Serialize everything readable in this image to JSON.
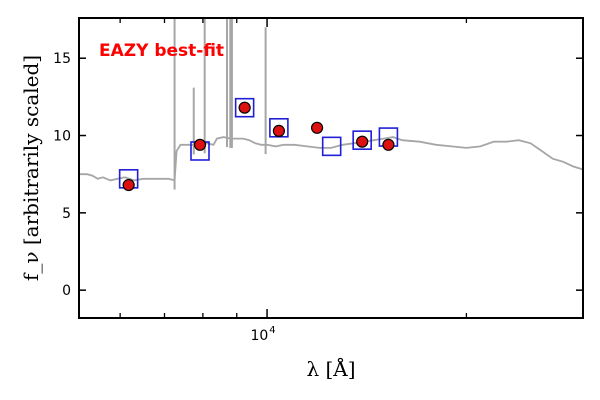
{
  "chart_data": {
    "type": "scatter",
    "xscale": "log",
    "xlim": [
      5200,
      30000
    ],
    "ylim": [
      -1.8,
      17.6
    ],
    "xlabel": "λ [Å]",
    "ylabel": "f_ν [arbitrarily scaled]",
    "yticks": [
      0,
      5,
      10,
      15
    ],
    "xticks_major": [
      {
        "value": 10000,
        "label": "10",
        "exponent": "4"
      }
    ],
    "xticks_minor": [
      6000,
      7000,
      8000,
      9000,
      20000,
      30000
    ],
    "annotation": "EAZY best-fit",
    "grid": false,
    "colors": {
      "model_line": "#a6a6a6",
      "observed_fill": "#dd1111",
      "model_box": "#1f1fd8",
      "annotation": "#ff0000"
    },
    "model_photometry": [
      {
        "x": 6180,
        "y": 7.2
      },
      {
        "x": 7920,
        "y": 9.0
      },
      {
        "x": 9250,
        "y": 11.8
      },
      {
        "x": 10420,
        "y": 10.5
      },
      {
        "x": 12520,
        "y": 9.3
      },
      {
        "x": 13920,
        "y": 9.7
      },
      {
        "x": 15250,
        "y": 9.9
      }
    ],
    "observed_photometry": [
      {
        "x": 6180,
        "y": 6.8
      },
      {
        "x": 7920,
        "y": 9.4
      },
      {
        "x": 9250,
        "y": 11.8
      },
      {
        "x": 10420,
        "y": 10.3
      },
      {
        "x": 11900,
        "y": 10.5
      },
      {
        "x": 13920,
        "y": 9.6
      },
      {
        "x": 15250,
        "y": 9.4
      }
    ],
    "sed_continuum": [
      [
        5200,
        7.5
      ],
      [
        5350,
        7.5
      ],
      [
        5450,
        7.4
      ],
      [
        5550,
        7.2
      ],
      [
        5650,
        7.3
      ],
      [
        5800,
        7.1
      ],
      [
        5950,
        7.2
      ],
      [
        6100,
        7.3
      ],
      [
        6300,
        7.1
      ],
      [
        6500,
        7.2
      ],
      [
        6800,
        7.2
      ],
      [
        7100,
        7.2
      ],
      [
        7250,
        7.1
      ],
      [
        7300,
        9.0
      ],
      [
        7400,
        9.4
      ],
      [
        7500,
        9.4
      ],
      [
        7700,
        9.4
      ],
      [
        7900,
        9.3
      ],
      [
        8100,
        9.5
      ],
      [
        8300,
        9.4
      ],
      [
        8400,
        9.8
      ],
      [
        8600,
        9.9
      ],
      [
        8800,
        9.8
      ],
      [
        9000,
        9.8
      ],
      [
        9200,
        9.8
      ],
      [
        9400,
        9.7
      ],
      [
        9600,
        9.5
      ],
      [
        9800,
        9.4
      ],
      [
        10000,
        9.4
      ],
      [
        10300,
        9.3
      ],
      [
        10600,
        9.4
      ],
      [
        11000,
        9.4
      ],
      [
        11500,
        9.3
      ],
      [
        12000,
        9.2
      ],
      [
        12500,
        9.2
      ],
      [
        13000,
        9.4
      ],
      [
        13500,
        9.5
      ],
      [
        14000,
        9.6
      ],
      [
        14500,
        9.7
      ],
      [
        15000,
        9.8
      ],
      [
        15500,
        9.9
      ],
      [
        16000,
        9.7
      ],
      [
        17000,
        9.6
      ],
      [
        18000,
        9.4
      ],
      [
        19000,
        9.3
      ],
      [
        20000,
        9.2
      ],
      [
        21000,
        9.3
      ],
      [
        22000,
        9.6
      ],
      [
        23000,
        9.6
      ],
      [
        24000,
        9.7
      ],
      [
        25000,
        9.5
      ],
      [
        26000,
        9.0
      ],
      [
        27000,
        8.5
      ],
      [
        28000,
        8.3
      ],
      [
        29000,
        8.0
      ],
      [
        30000,
        7.8
      ]
    ],
    "emission_lines": [
      {
        "x": 7250,
        "y": 17.6
      },
      {
        "x": 7750,
        "y": 13.1
      },
      {
        "x": 8050,
        "y": 17.6
      },
      {
        "x": 8700,
        "y": 17.6
      },
      {
        "x": 8800,
        "y": 17.6
      },
      {
        "x": 8850,
        "y": 17.6
      },
      {
        "x": 9950,
        "y": 17.0
      }
    ]
  }
}
